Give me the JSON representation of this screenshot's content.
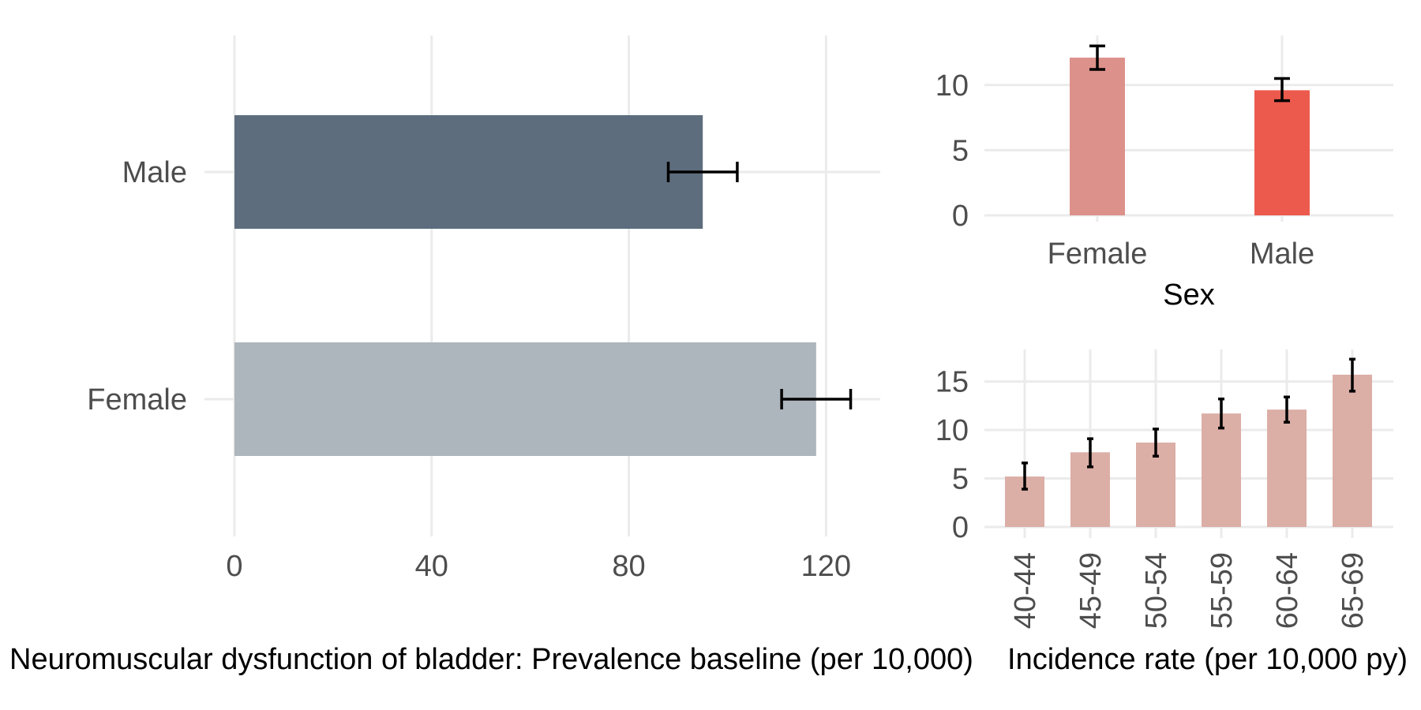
{
  "chart_data": [
    {
      "id": "prevalence",
      "type": "bar",
      "orientation": "horizontal",
      "categories": [
        "Male",
        "Female"
      ],
      "values": [
        95,
        118
      ],
      "error_low": [
        88,
        111
      ],
      "error_high": [
        102,
        125
      ],
      "colors": [
        "#5d6d7e",
        "#adb5bd"
      ],
      "xlim": [
        0,
        131
      ],
      "xticks": [
        "0",
        "40",
        "80",
        "120"
      ],
      "xtick_values": [
        0,
        40,
        80,
        120
      ],
      "xlabel": "Neuromuscular dysfunction of bladder: Prevalence baseline (per 10,000)",
      "ylabel": "",
      "grid": true
    },
    {
      "id": "incidence_sex",
      "type": "bar",
      "categories": [
        "Female",
        "Male"
      ],
      "values": [
        12.1,
        9.6
      ],
      "error_low": [
        11.2,
        8.8
      ],
      "error_high": [
        13.0,
        10.5
      ],
      "colors": [
        "#dc918a",
        "#ec5a4d"
      ],
      "ylim": [
        0,
        13.8
      ],
      "yticks": [
        "0",
        "5",
        "10"
      ],
      "ytick_values": [
        0,
        5,
        10
      ],
      "xlabel": "Sex",
      "ylabel": "",
      "grid": true
    },
    {
      "id": "incidence_age",
      "type": "bar",
      "categories": [
        "40-44",
        "45-49",
        "50-54",
        "55-59",
        "60-64",
        "65-69"
      ],
      "values": [
        5.2,
        7.7,
        8.7,
        11.7,
        12.1,
        15.7
      ],
      "error_low": [
        3.9,
        6.2,
        7.3,
        10.2,
        10.8,
        14.0
      ],
      "error_high": [
        6.6,
        9.1,
        10.1,
        13.2,
        13.4,
        17.3
      ],
      "colors": [
        "#dbaea6"
      ],
      "ylim": [
        0,
        18.3
      ],
      "yticks": [
        "0",
        "5",
        "10",
        "15"
      ],
      "ytick_values": [
        0,
        5,
        10,
        15
      ],
      "xlabel": "Incidence rate (per 10,000 py)",
      "ylabel": "",
      "grid": true
    }
  ]
}
